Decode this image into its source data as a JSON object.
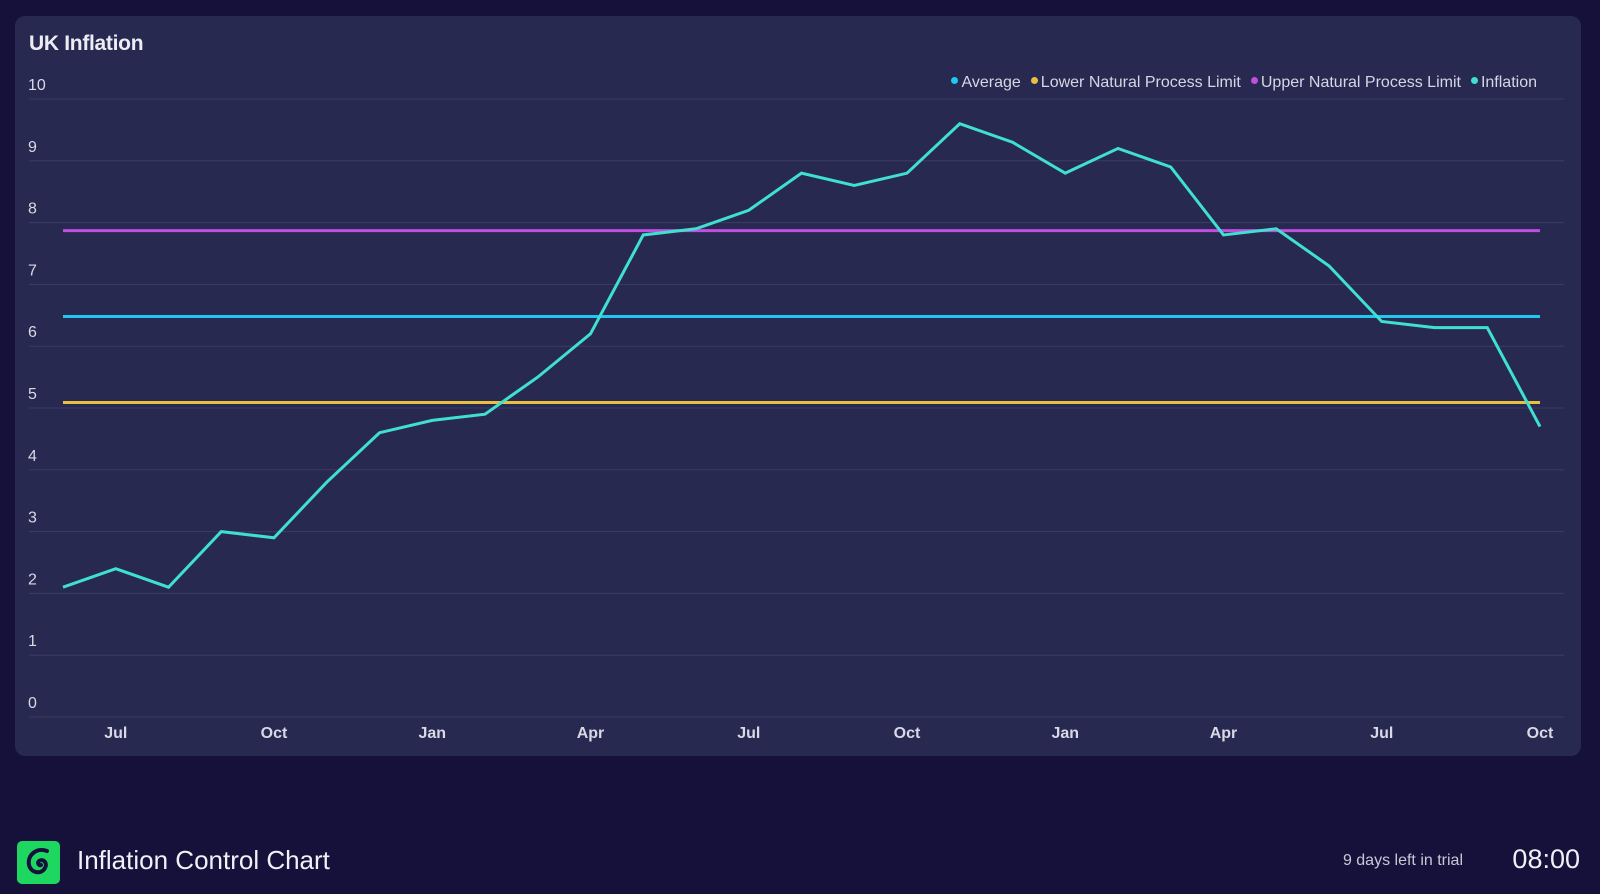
{
  "chart_data": {
    "type": "line",
    "title": "UK Inflation",
    "ylim": [
      0,
      10
    ],
    "yticks": [
      "0",
      "1",
      "2",
      "3",
      "4",
      "5",
      "6",
      "7",
      "8",
      "9",
      "10"
    ],
    "xtick_labels": [
      {
        "index": 1,
        "label": "Jul"
      },
      {
        "index": 4,
        "label": "Oct"
      },
      {
        "index": 7,
        "label": "Jan"
      },
      {
        "index": 10,
        "label": "Apr"
      },
      {
        "index": 13,
        "label": "Jul"
      },
      {
        "index": 16,
        "label": "Oct"
      },
      {
        "index": 19,
        "label": "Jan"
      },
      {
        "index": 22,
        "label": "Apr"
      },
      {
        "index": 25,
        "label": "Jul"
      },
      {
        "index": 28,
        "label": "Oct"
      }
    ],
    "grid": true,
    "legend_position": "top-right",
    "series": [
      {
        "name": "Average",
        "color": "#1ec8f0",
        "constant": 6.48
      },
      {
        "name": "Lower Natural Process Limit",
        "color": "#e8c040",
        "constant": 5.09
      },
      {
        "name": "Upper Natural Process Limit",
        "color": "#c04ee0",
        "constant": 7.87
      },
      {
        "name": "Inflation",
        "color": "#40e0d0",
        "values": [
          2.1,
          2.4,
          2.1,
          3.0,
          2.9,
          3.8,
          4.6,
          4.8,
          4.9,
          5.5,
          6.2,
          7.8,
          7.9,
          8.2,
          8.8,
          8.6,
          8.8,
          9.6,
          9.3,
          8.8,
          9.2,
          8.9,
          7.8,
          7.9,
          7.3,
          6.4,
          6.3,
          6.3,
          4.7
        ]
      }
    ]
  },
  "footer": {
    "app_title": "Inflation Control Chart",
    "trial_text": "9 days left in trial",
    "clock": "08:00",
    "logo_color": "#1ed760"
  }
}
